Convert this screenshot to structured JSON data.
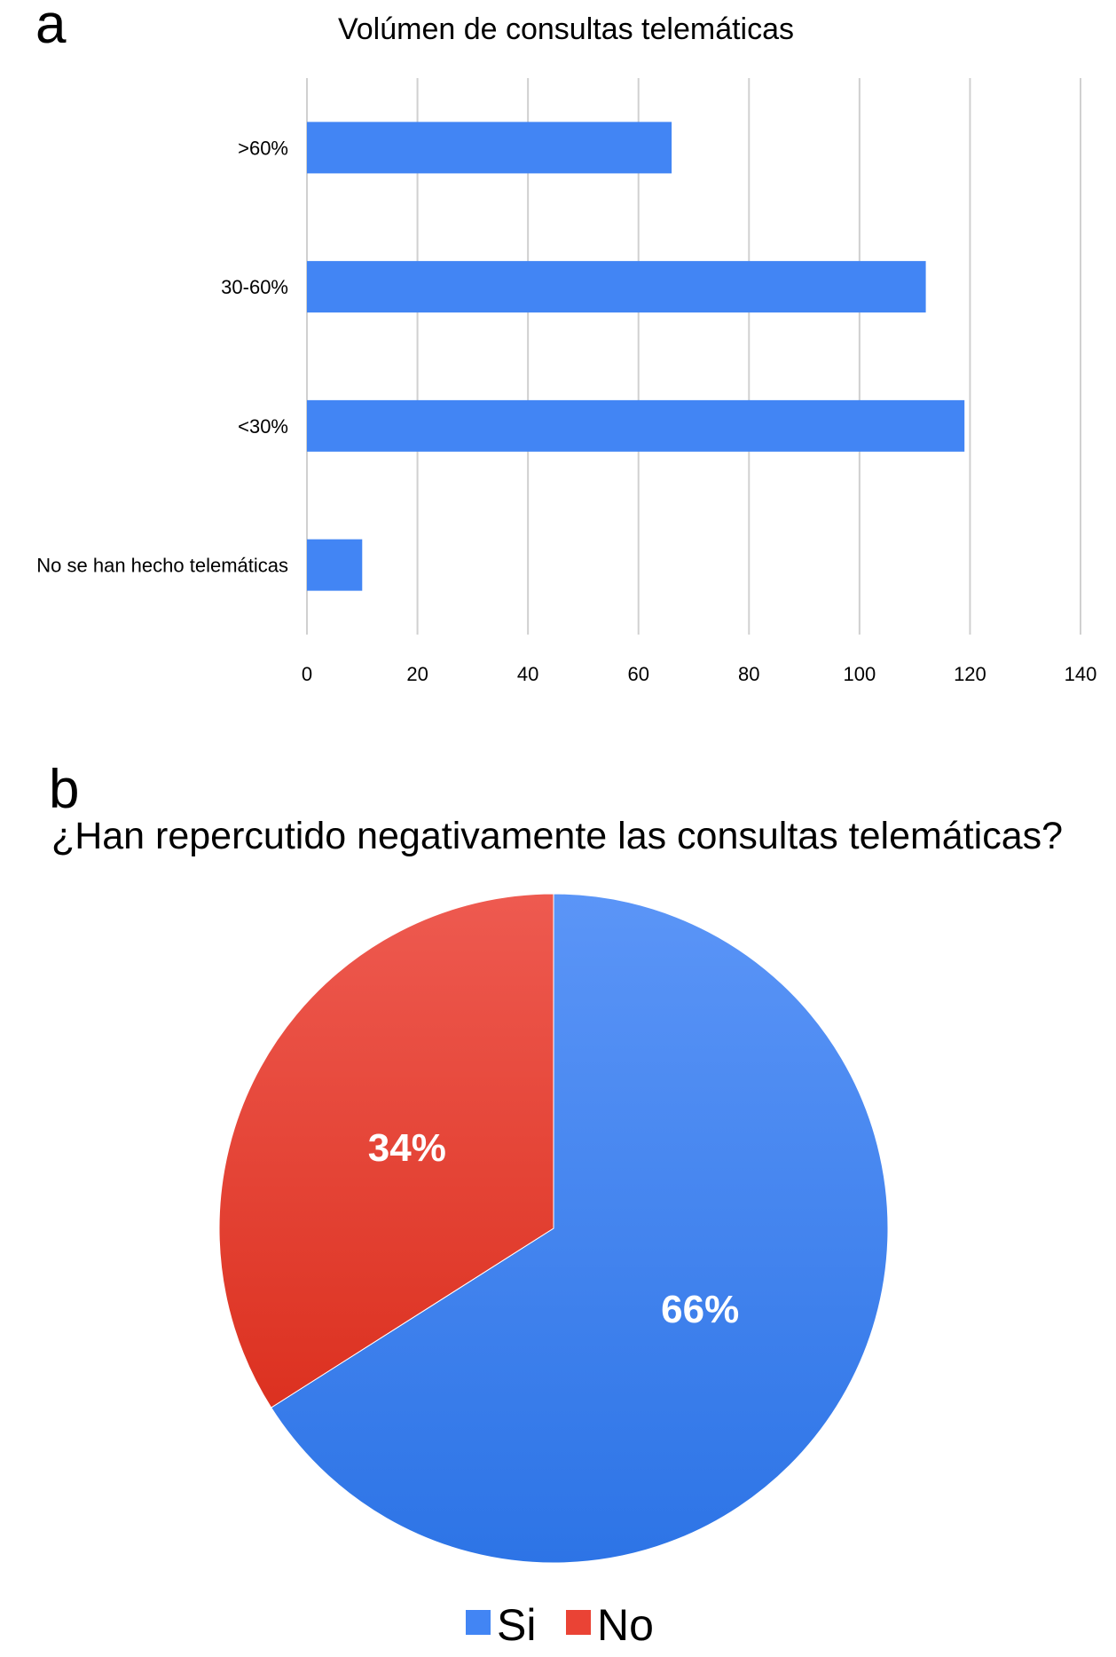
{
  "panels": {
    "a": {
      "letter": "a",
      "chart_data": {
        "type": "bar",
        "orientation": "horizontal",
        "title": "Volúmen de consultas telemáticas",
        "xlabel": "",
        "ylabel": "",
        "categories": [
          ">60%",
          "30-60%",
          "<30%",
          "No se han hecho telemáticas"
        ],
        "values": [
          66,
          112,
          119,
          10
        ],
        "xlim": [
          0,
          140
        ],
        "xticks": [
          "0",
          "20",
          "40",
          "60",
          "80",
          "100",
          "120",
          "140"
        ],
        "grid": true,
        "color": "#4285f4"
      }
    },
    "b": {
      "letter": "b",
      "chart_data": {
        "type": "pie",
        "title": "¿Han repercutido negativamente las consultas telemáticas?",
        "categories": [
          "Si",
          "No"
        ],
        "values": [
          66,
          34
        ],
        "labels": [
          "66%",
          "34%"
        ],
        "colors": [
          "#4285f4",
          "#ea4335"
        ],
        "legend_position": "bottom"
      }
    }
  }
}
